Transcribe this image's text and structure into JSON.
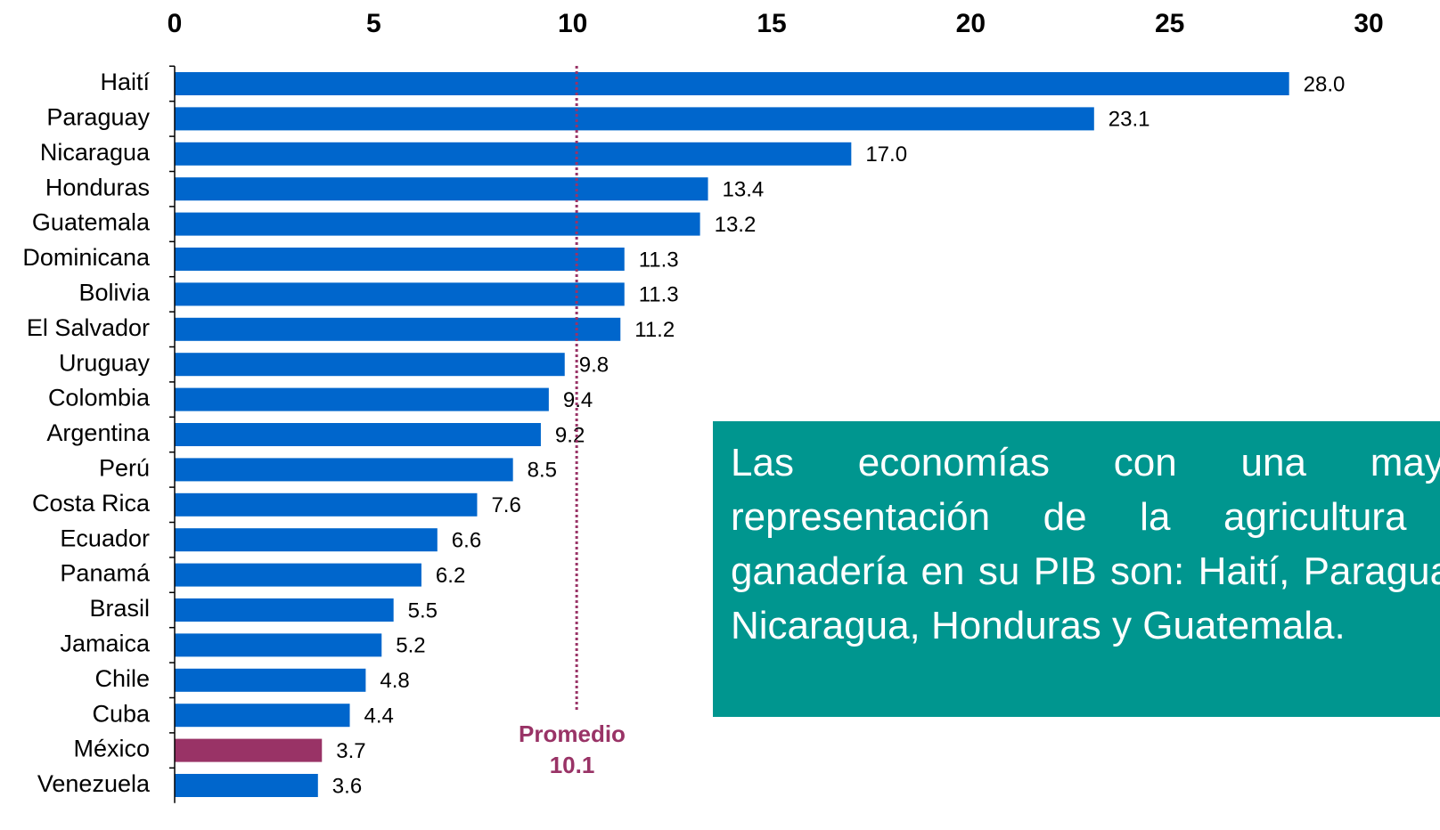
{
  "chart_data": {
    "type": "hbar",
    "categories": [
      "Haití",
      "Paraguay",
      "Nicaragua",
      "Honduras",
      "Guatemala",
      "Dominicana",
      "Bolivia",
      "El Salvador",
      "Uruguay",
      "Colombia",
      "Argentina",
      "Perú",
      "Costa Rica",
      "Ecuador",
      "Panamá",
      "Brasil",
      "Jamaica",
      "Chile",
      "Cuba",
      "México",
      "Venezuela"
    ],
    "values": [
      28.0,
      23.1,
      17.0,
      13.4,
      13.2,
      11.3,
      11.3,
      11.2,
      9.8,
      9.4,
      9.2,
      8.5,
      7.6,
      6.6,
      6.2,
      5.5,
      5.2,
      4.8,
      4.4,
      3.7,
      3.6
    ],
    "value_labels": [
      "28.0",
      "23.1",
      "17.0",
      "13.4",
      "13.2",
      "11.3",
      "11.3",
      "11.2",
      "9.8",
      "9.4",
      "9.2",
      "8.5",
      "7.6",
      "6.6",
      "6.2",
      "5.5",
      "5.2",
      "4.8",
      "4.4",
      "3.7",
      "3.6"
    ],
    "colors": [
      "#0066cc",
      "#0066cc",
      "#0066cc",
      "#0066cc",
      "#0066cc",
      "#0066cc",
      "#0066cc",
      "#0066cc",
      "#0066cc",
      "#0066cc",
      "#0066cc",
      "#0066cc",
      "#0066cc",
      "#0066cc",
      "#0066cc",
      "#0066cc",
      "#0066cc",
      "#0066cc",
      "#0066cc",
      "#993366",
      "#0066cc"
    ],
    "xlim": [
      0,
      30
    ],
    "xticks": [
      0,
      5,
      10,
      15,
      20,
      25,
      30
    ],
    "average": {
      "label": "Promedio",
      "value": 10.1,
      "color": "#993366"
    },
    "annotation": "Las economías con una mayor representación de la agricultura y ganadería en su PIB son: Haití, Paraguay, Nicaragua, Honduras y Guatemala."
  }
}
